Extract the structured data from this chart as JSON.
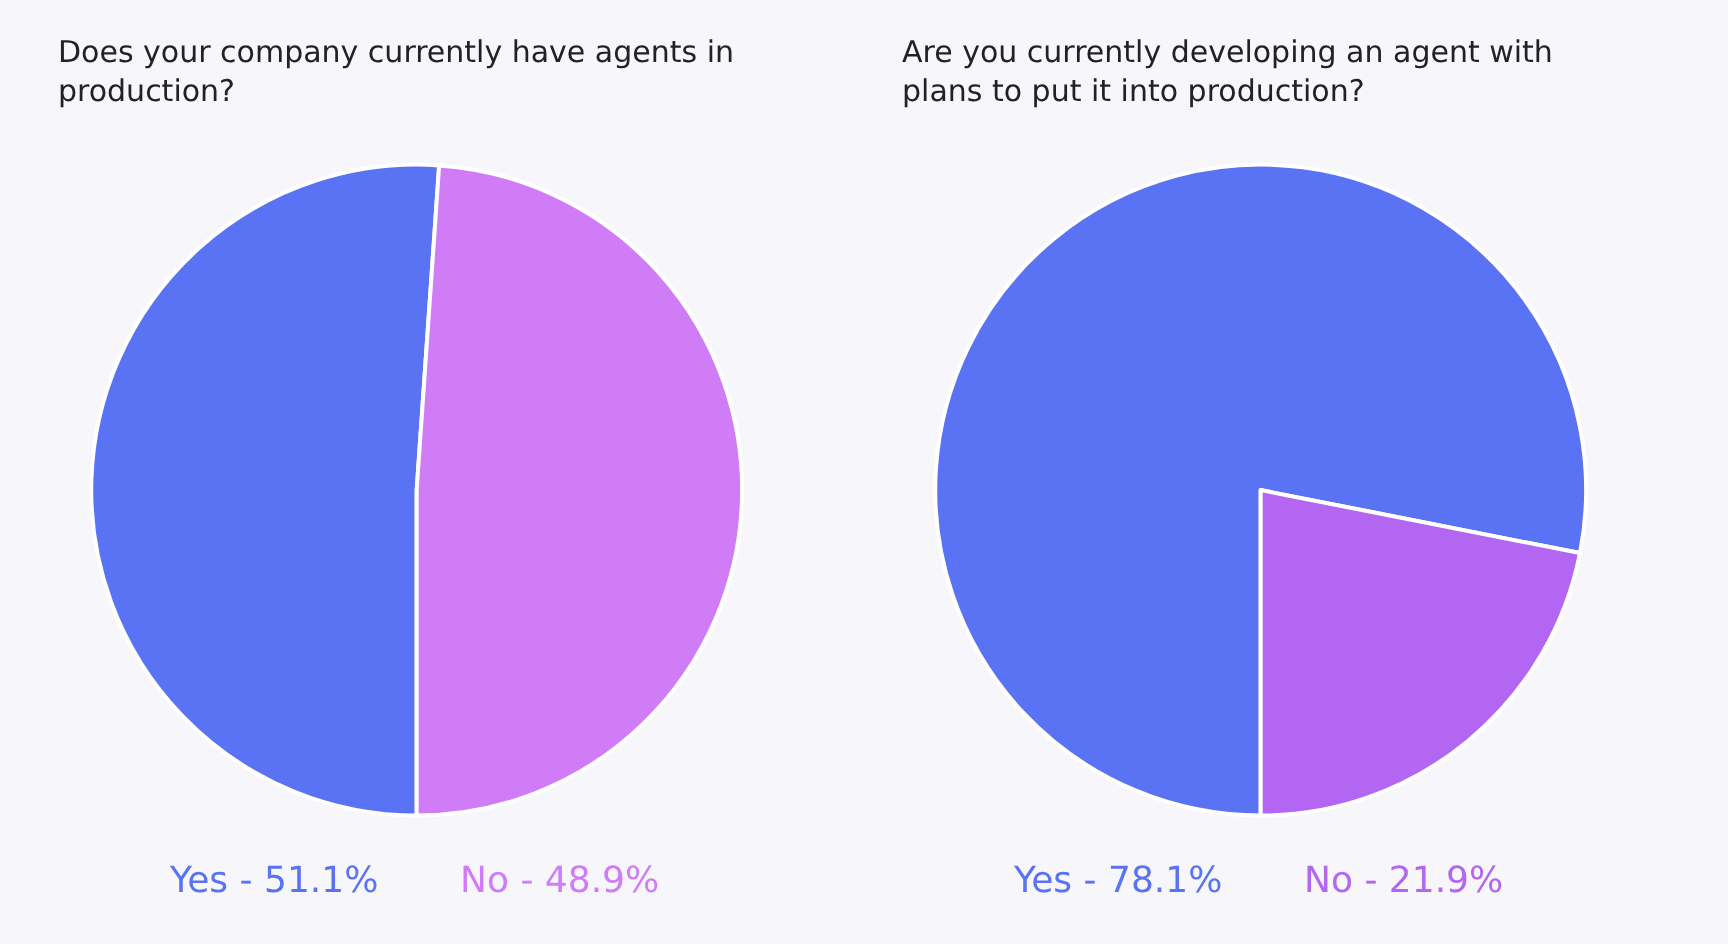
{
  "chart_data": [
    {
      "type": "pie",
      "title": "Does your company currently have agents in production?",
      "categories": [
        "Yes - 51.1%",
        "No - 48.9%"
      ],
      "values": [
        51.1,
        48.9
      ],
      "colors": [
        "#5a72f4",
        "#cf7cf6"
      ]
    },
    {
      "type": "pie",
      "title": "Are you currently developing an agent with plans to put it into production?",
      "categories": [
        "Yes - 78.1%",
        "No - 21.9%"
      ],
      "values": [
        78.1,
        21.9
      ],
      "colors": [
        "#5a72f4",
        "#b266f2"
      ]
    }
  ]
}
